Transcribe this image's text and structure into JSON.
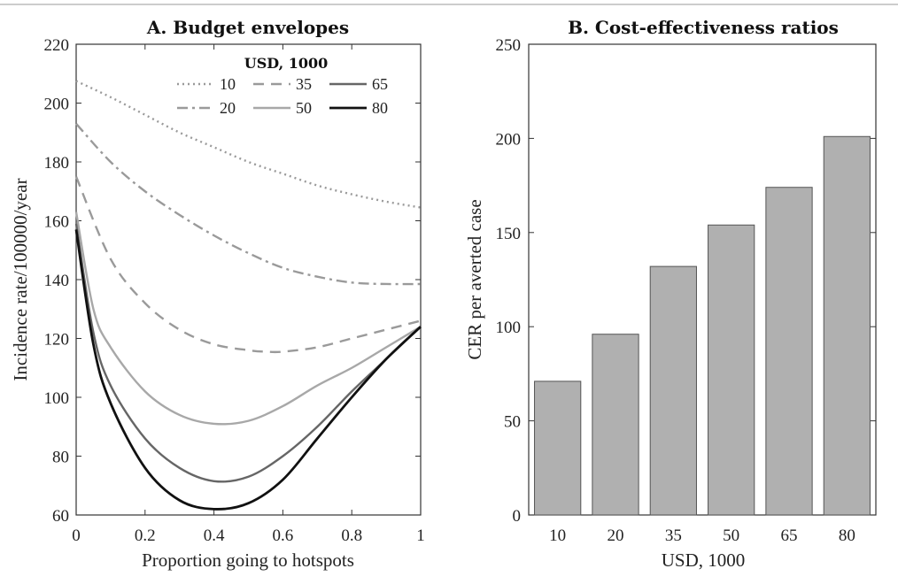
{
  "chart_data": [
    {
      "type": "line",
      "title": "A. Budget envelopes",
      "xlabel": "Proportion going to hotspots",
      "ylabel": "Incidence rate/100000/year",
      "xlim": [
        0,
        1
      ],
      "ylim": [
        60,
        220
      ],
      "xticks": [
        "0",
        "0.2",
        "0.4",
        "0.6",
        "0.8",
        "1"
      ],
      "yticks": [
        "60",
        "80",
        "100",
        "120",
        "140",
        "160",
        "180",
        "200",
        "220"
      ],
      "legend_title": "USD, 1000",
      "legend_position": "top-right",
      "series": [
        {
          "name": "10",
          "style": "dotted",
          "color": "#9a9a9a",
          "x": [
            0,
            0.1,
            0.2,
            0.3,
            0.4,
            0.5,
            0.6,
            0.7,
            0.8,
            0.9,
            1.0
          ],
          "y": [
            207.5,
            202,
            196,
            190,
            185,
            180,
            176,
            172,
            169,
            166.5,
            164.5
          ]
        },
        {
          "name": "20",
          "style": "dashdot",
          "color": "#9a9a9a",
          "x": [
            0,
            0.1,
            0.2,
            0.3,
            0.4,
            0.5,
            0.6,
            0.7,
            0.8,
            0.9,
            1.0
          ],
          "y": [
            193,
            180,
            170,
            162,
            155,
            149,
            144,
            141,
            139,
            138.5,
            138.5
          ]
        },
        {
          "name": "35",
          "style": "dashed",
          "color": "#9a9a9a",
          "x": [
            0,
            0.1,
            0.2,
            0.3,
            0.4,
            0.5,
            0.55,
            0.6,
            0.7,
            0.8,
            0.9,
            1.0
          ],
          "y": [
            175,
            147,
            132,
            123,
            118,
            116,
            115.5,
            115.5,
            117,
            120,
            123,
            126
          ]
        },
        {
          "name": "50",
          "style": "solid",
          "color": "#a8a8a8",
          "x": [
            0,
            0.05,
            0.1,
            0.2,
            0.3,
            0.4,
            0.5,
            0.6,
            0.7,
            0.8,
            0.9,
            1.0
          ],
          "y": [
            163,
            130,
            117,
            102,
            94,
            91,
            92,
            97,
            104,
            110,
            117,
            124
          ]
        },
        {
          "name": "65",
          "style": "solid",
          "color": "#666666",
          "x": [
            0,
            0.05,
            0.1,
            0.2,
            0.3,
            0.4,
            0.5,
            0.6,
            0.7,
            0.8,
            0.9,
            1.0
          ],
          "y": [
            159,
            122,
            104,
            86,
            76,
            71.5,
            73,
            80,
            90,
            102,
            113,
            124
          ]
        },
        {
          "name": "80",
          "style": "solid",
          "color": "#111111",
          "x": [
            0,
            0.05,
            0.1,
            0.2,
            0.3,
            0.4,
            0.5,
            0.6,
            0.7,
            0.8,
            0.9,
            1.0
          ],
          "y": [
            157,
            118,
            98,
            76,
            65,
            62,
            64,
            72,
            86,
            100,
            113,
            124
          ]
        }
      ]
    },
    {
      "type": "bar",
      "title": "B. Cost-effectiveness ratios",
      "xlabel": "USD, 1000",
      "ylabel": "CER per averted case",
      "categories": [
        "10",
        "20",
        "35",
        "50",
        "65",
        "80"
      ],
      "values": [
        71,
        96,
        132,
        154,
        174,
        201
      ],
      "ylim": [
        0,
        250
      ],
      "yticks": [
        "0",
        "50",
        "100",
        "150",
        "200",
        "250"
      ],
      "bar_color": "#b0b0b0"
    }
  ]
}
